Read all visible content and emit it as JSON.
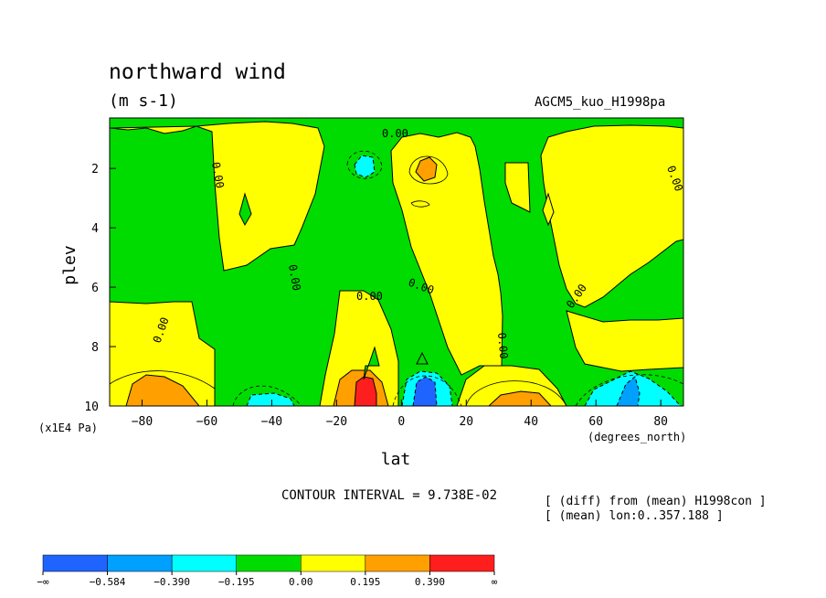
{
  "header": {
    "title": "northward wind",
    "units": "(m s-1)",
    "model": "AGCM5_kuo_H1998pa"
  },
  "footer": {
    "contour_interval": "CONTOUR INTERVAL = 9.738E-02",
    "note_line1": "[ (diff) from (mean) H1998con ]",
    "note_line2": "[ (mean) lon:0..357.188 ]"
  },
  "chart_data": {
    "type": "contour",
    "xlabel": "lat",
    "x_unit": "(degrees_north)",
    "ylabel": "plev",
    "y_unit": "(x1E4 Pa)",
    "xlim": [
      -90,
      87
    ],
    "ylim": [
      10,
      0.3
    ],
    "x_ticks": [
      -80,
      -60,
      -40,
      -20,
      0,
      20,
      40,
      60,
      80
    ],
    "y_ticks": [
      2,
      4,
      6,
      8,
      10
    ],
    "contour_labels": [
      "0.00",
      "0.00",
      "0.00",
      "0.00",
      "0.00",
      "0.00",
      "0.00",
      "0.00",
      "0.00"
    ],
    "colorbar": {
      "colors": [
        "#1f64ff",
        "#00a0ff",
        "#00ffff",
        "#00dc00",
        "#ffff00",
        "#ffa000",
        "#ff1e1e"
      ],
      "labels": [
        "-∞",
        "-0.584",
        "-0.390",
        "-0.195",
        "0.00",
        "0.195",
        "0.390",
        "∞"
      ]
    }
  }
}
